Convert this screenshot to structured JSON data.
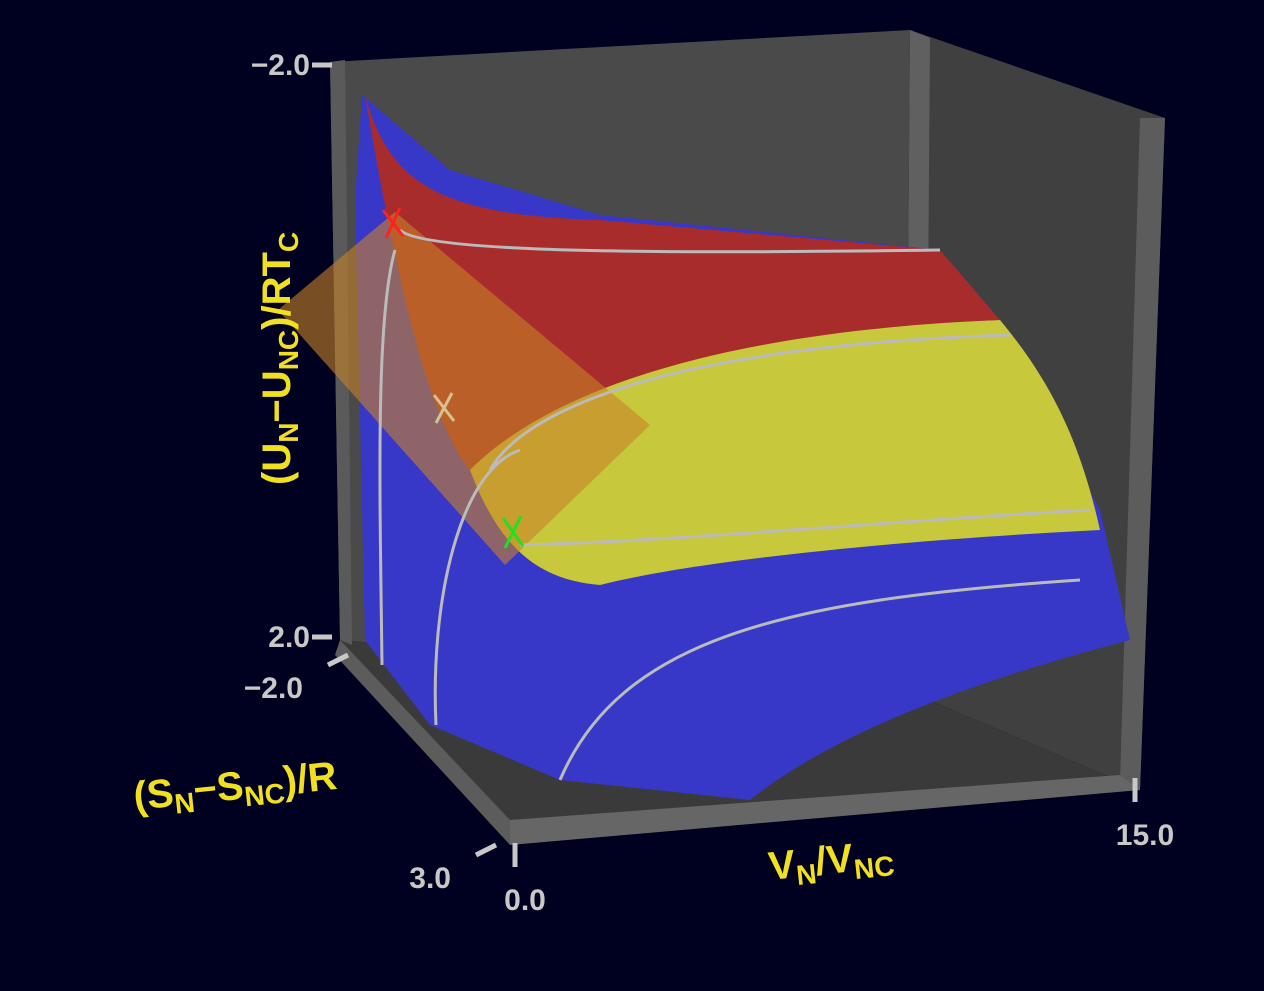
{
  "chart_data": {
    "type": "surface3d",
    "xlabel": [
      "V",
      "N",
      "/V",
      "NC"
    ],
    "ylabel": [
      "(S",
      "N",
      "−S",
      "NC",
      ")/R"
    ],
    "zlabel": [
      "(U",
      "N",
      "−U",
      "NC",
      ")/RT",
      "C"
    ],
    "xlim": [
      0.0,
      15.0
    ],
    "xticks": [
      {
        "value": 0.0,
        "label": "0.0"
      },
      {
        "value": 15.0,
        "label": "15.0"
      }
    ],
    "ylim": [
      -2.0,
      3.0
    ],
    "yticks": [
      {
        "value": -2.0,
        "label": "−2.0"
      },
      {
        "value": 3.0,
        "label": "3.0"
      }
    ],
    "zlim": [
      2.0,
      -2.0
    ],
    "zticks": [
      {
        "value": -2.0,
        "label": "−2.0"
      },
      {
        "value": 2.0,
        "label": "2.0"
      }
    ]
  }
}
